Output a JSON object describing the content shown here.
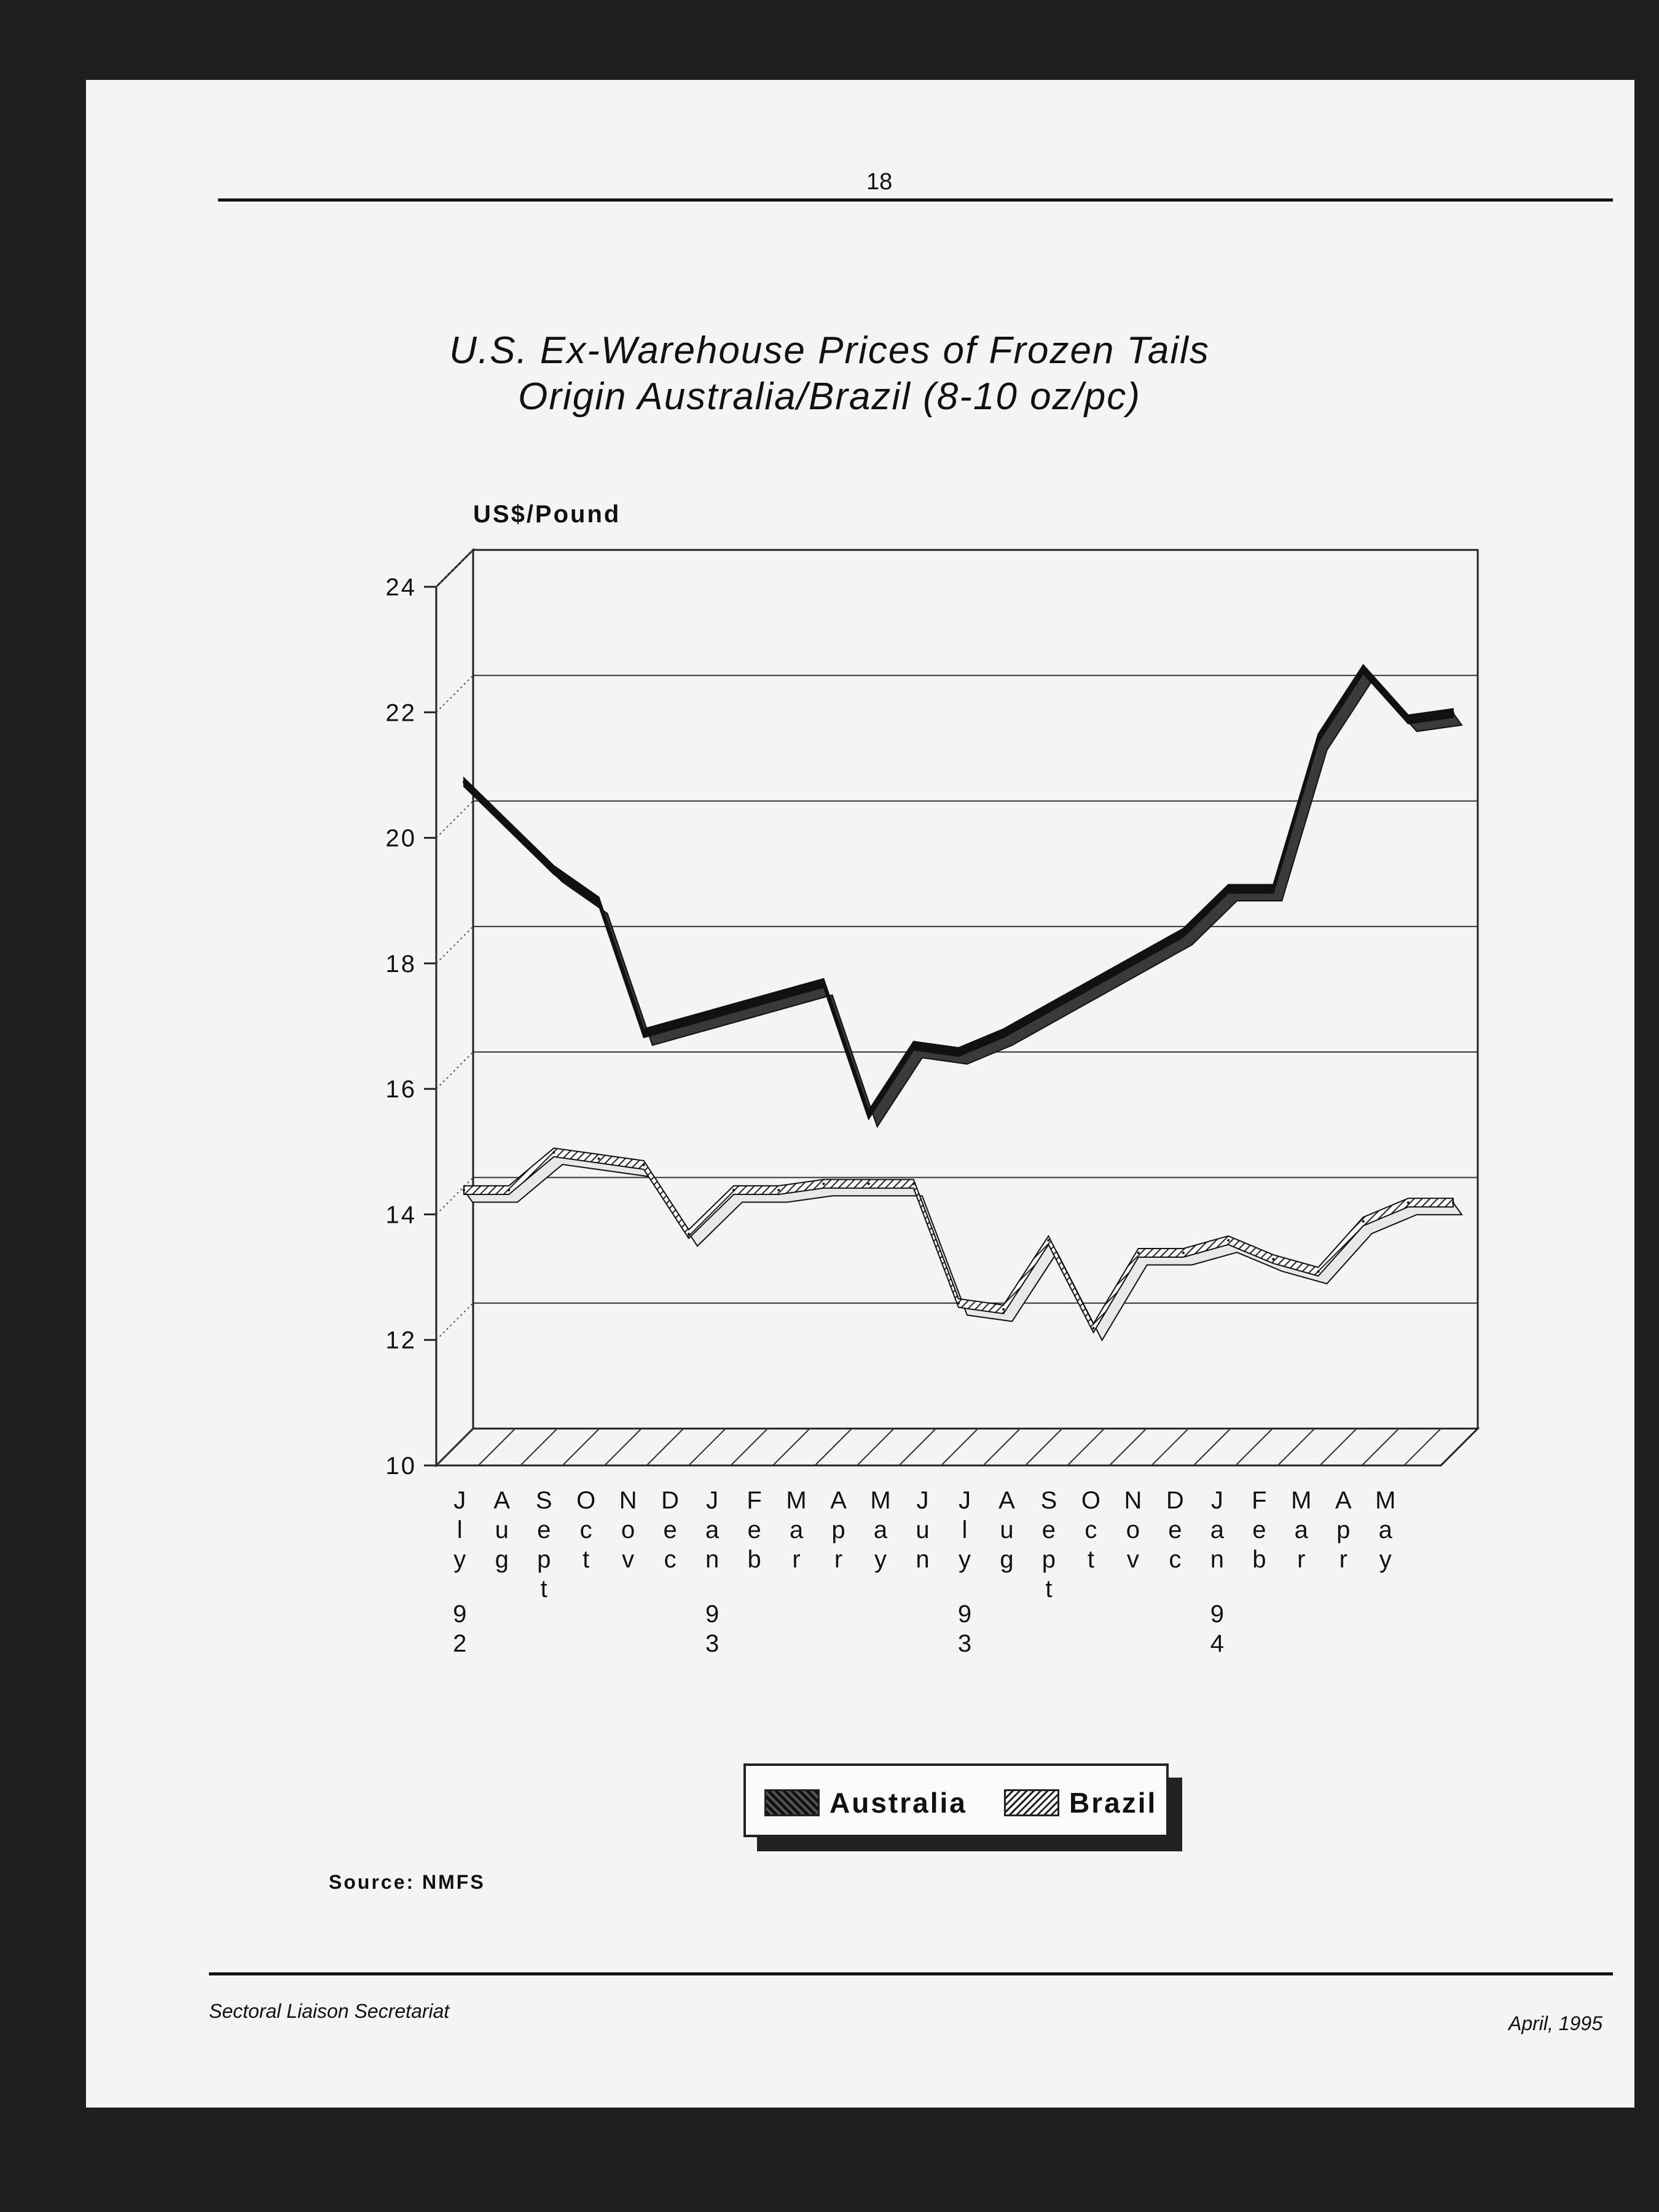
{
  "page": {
    "number": "18",
    "footer_left": "Sectoral Liaison Secretariat",
    "footer_right": "April, 1995"
  },
  "chart": {
    "title_line1": "U.S. Ex-Warehouse Prices of Frozen Tails",
    "title_line2": "Origin Australia/Brazil (8-10 oz/pc)",
    "ylabel": "US$/Pound",
    "source": "Source: NMFS",
    "legend": {
      "australia": "Australia",
      "brazil": "Brazil"
    }
  },
  "colors": {
    "australia": "#111111",
    "brazil_stripe": "#222222",
    "grid": "#333333",
    "page": "#f4f4f2"
  },
  "chart_data": {
    "type": "line",
    "style": "3d-ribbon",
    "title": "U.S. Ex-Warehouse Prices of Frozen Tails Origin Australia/Brazil (8-10 oz/pc)",
    "xlabel": "",
    "ylabel": "US$/Pound",
    "ylim": [
      10,
      24
    ],
    "yticks": [
      10,
      12,
      14,
      16,
      18,
      20,
      22,
      24
    ],
    "grid": true,
    "legend_position": "bottom-center",
    "categories": [
      "July 92",
      "Aug",
      "Sept",
      "Oct",
      "Nov",
      "Dec",
      "Jan 93",
      "Feb",
      "Mar",
      "Apr",
      "May",
      "Jun",
      "July 93",
      "Aug",
      "Sept",
      "Oct",
      "Nov",
      "Dec",
      "Jan 94",
      "Feb",
      "Mar",
      "Apr",
      "May"
    ],
    "tick_labels": [
      {
        "letters": [
          "J",
          "l",
          "y"
        ],
        "year": [
          "9",
          "2"
        ]
      },
      {
        "letters": [
          "A",
          "u",
          "g"
        ],
        "year": []
      },
      {
        "letters": [
          "S",
          "e",
          "p",
          "t"
        ],
        "year": []
      },
      {
        "letters": [
          "O",
          "c",
          "t"
        ],
        "year": []
      },
      {
        "letters": [
          "N",
          "o",
          "v"
        ],
        "year": []
      },
      {
        "letters": [
          "D",
          "e",
          "c"
        ],
        "year": []
      },
      {
        "letters": [
          "J",
          "a",
          "n"
        ],
        "year": [
          "9",
          "3"
        ]
      },
      {
        "letters": [
          "F",
          "e",
          "b"
        ],
        "year": []
      },
      {
        "letters": [
          "M",
          "a",
          "r"
        ],
        "year": []
      },
      {
        "letters": [
          "A",
          "p",
          "r"
        ],
        "year": []
      },
      {
        "letters": [
          "M",
          "a",
          "y"
        ],
        "year": []
      },
      {
        "letters": [
          "J",
          "u",
          "n"
        ],
        "year": []
      },
      {
        "letters": [
          "J",
          "l",
          "y"
        ],
        "year": [
          "9",
          "3"
        ]
      },
      {
        "letters": [
          "A",
          "u",
          "g"
        ],
        "year": []
      },
      {
        "letters": [
          "S",
          "e",
          "p",
          "t"
        ],
        "year": []
      },
      {
        "letters": [
          "O",
          "c",
          "t"
        ],
        "year": []
      },
      {
        "letters": [
          "N",
          "o",
          "v"
        ],
        "year": []
      },
      {
        "letters": [
          "D",
          "e",
          "c"
        ],
        "year": []
      },
      {
        "letters": [
          "J",
          "a",
          "n"
        ],
        "year": [
          "9",
          "4"
        ]
      },
      {
        "letters": [
          "F",
          "e",
          "b"
        ],
        "year": []
      },
      {
        "letters": [
          "M",
          "a",
          "r"
        ],
        "year": []
      },
      {
        "letters": [
          "A",
          "p",
          "r"
        ],
        "year": []
      },
      {
        "letters": [
          "M",
          "a",
          "y"
        ],
        "year": []
      }
    ],
    "series": [
      {
        "name": "Australia",
        "values": [
          20.3,
          19.6,
          18.9,
          18.4,
          16.3,
          16.5,
          16.7,
          16.9,
          17.1,
          15.0,
          16.1,
          16.0,
          16.3,
          16.7,
          17.1,
          17.5,
          17.9,
          18.6,
          18.6,
          21.0,
          22.1,
          21.3,
          21.4
        ]
      },
      {
        "name": "Brazil",
        "values": [
          13.8,
          13.8,
          14.4,
          14.3,
          14.2,
          13.1,
          13.8,
          13.8,
          13.9,
          13.9,
          13.9,
          12.0,
          11.9,
          13.0,
          11.6,
          12.8,
          12.8,
          13.0,
          12.7,
          12.5,
          13.3,
          13.6,
          13.6
        ]
      }
    ]
  }
}
